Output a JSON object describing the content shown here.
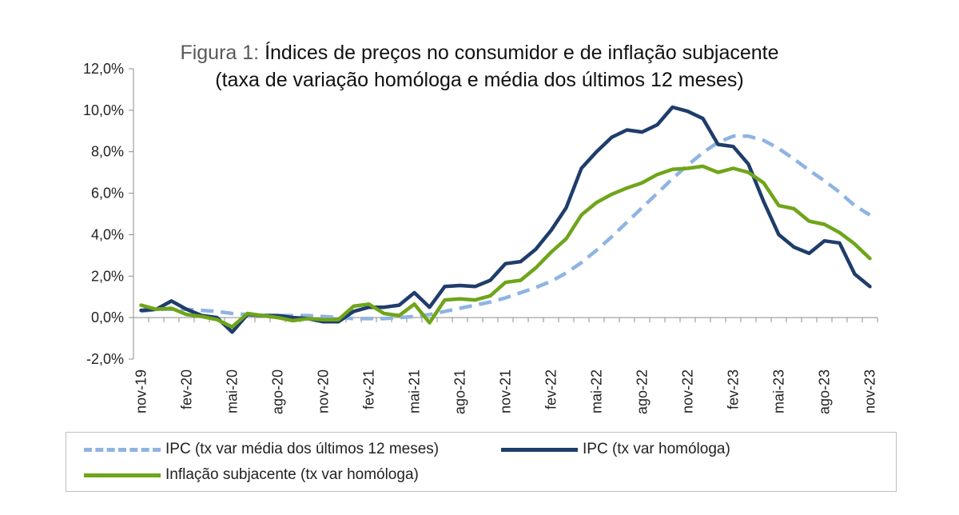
{
  "chart_data": {
    "type": "line",
    "title_prefix": "Figura 1:",
    "title_line1": "Índices de preços no consumidor e de inflação subjacente",
    "title_line2": "(taxa de variação homóloga e média dos últimos 12 meses)",
    "ylim": [
      -2.0,
      12.0
    ],
    "y_ticks": [
      "-2,0%",
      "0,0%",
      "2,0%",
      "4,0%",
      "6,0%",
      "8,0%",
      "10,0%",
      "12,0%"
    ],
    "y_tick_values": [
      -2,
      0,
      2,
      4,
      6,
      8,
      10,
      12
    ],
    "x_tick_labels": [
      "nov-19",
      "fev-20",
      "mai-20",
      "ago-20",
      "nov-20",
      "fev-21",
      "mai-21",
      "ago-21",
      "nov-21",
      "fev-22",
      "mai-22",
      "ago-22",
      "nov-22",
      "fev-23",
      "mai-23",
      "ago-23",
      "nov-23"
    ],
    "months": [
      "nov-19",
      "dez-19",
      "jan-20",
      "fev-20",
      "mar-20",
      "abr-20",
      "mai-20",
      "jun-20",
      "jul-20",
      "ago-20",
      "set-20",
      "out-20",
      "nov-20",
      "dez-20",
      "jan-21",
      "fev-21",
      "mar-21",
      "abr-21",
      "mai-21",
      "jun-21",
      "jul-21",
      "ago-21",
      "set-21",
      "out-21",
      "nov-21",
      "dez-21",
      "jan-22",
      "fev-22",
      "mar-22",
      "abr-22",
      "mai-22",
      "jun-22",
      "jul-22",
      "ago-22",
      "set-22",
      "out-22",
      "nov-22",
      "dez-22",
      "jan-23",
      "fev-23",
      "mar-23",
      "abr-23",
      "mai-23",
      "jun-23",
      "jul-23",
      "ago-23",
      "set-23",
      "out-23",
      "nov-23"
    ],
    "grid": false,
    "legend_position": "bottom",
    "series": [
      {
        "name": "IPC (tx var média dos últimos 12 meses)",
        "color": "#8eb4e3",
        "style": "dashed",
        "values": [
          0.3,
          0.4,
          0.4,
          0.4,
          0.35,
          0.3,
          0.2,
          0.15,
          0.1,
          0.1,
          0.1,
          0.1,
          0.05,
          0.0,
          -0.05,
          -0.05,
          -0.05,
          0.0,
          0.05,
          0.15,
          0.3,
          0.45,
          0.6,
          0.75,
          0.95,
          1.2,
          1.45,
          1.75,
          2.15,
          2.65,
          3.25,
          3.9,
          4.6,
          5.3,
          6.0,
          6.7,
          7.35,
          7.95,
          8.45,
          8.75,
          8.75,
          8.55,
          8.15,
          7.65,
          7.1,
          6.6,
          6.05,
          5.4,
          4.95
        ]
      },
      {
        "name": "IPC (tx var homóloga)",
        "color": "#1f3d6b",
        "style": "solid",
        "values": [
          0.35,
          0.4,
          0.8,
          0.4,
          0.1,
          0.0,
          -0.7,
          0.15,
          0.1,
          0.1,
          0.0,
          -0.05,
          -0.2,
          -0.2,
          0.3,
          0.5,
          0.5,
          0.6,
          1.2,
          0.5,
          1.5,
          1.55,
          1.5,
          1.8,
          2.6,
          2.7,
          3.3,
          4.2,
          5.3,
          7.2,
          8.0,
          8.7,
          9.05,
          8.95,
          9.3,
          10.15,
          9.95,
          9.6,
          8.35,
          8.25,
          7.4,
          5.6,
          4.0,
          3.4,
          3.1,
          3.7,
          3.6,
          2.1,
          1.5
        ]
      },
      {
        "name": "Inflação subjacente (tx var homóloga)",
        "color": "#6fa51a",
        "style": "solid",
        "values": [
          0.6,
          0.4,
          0.45,
          0.15,
          0.05,
          -0.1,
          -0.45,
          0.2,
          0.1,
          0.0,
          -0.15,
          -0.05,
          -0.1,
          -0.1,
          0.55,
          0.65,
          0.2,
          0.1,
          0.65,
          -0.25,
          0.85,
          0.9,
          0.85,
          1.05,
          1.7,
          1.8,
          2.4,
          3.15,
          3.8,
          4.95,
          5.55,
          5.95,
          6.25,
          6.5,
          6.9,
          7.15,
          7.2,
          7.3,
          7.0,
          7.2,
          7.0,
          6.5,
          5.4,
          5.25,
          4.65,
          4.5,
          4.1,
          3.55,
          2.85
        ]
      }
    ]
  }
}
